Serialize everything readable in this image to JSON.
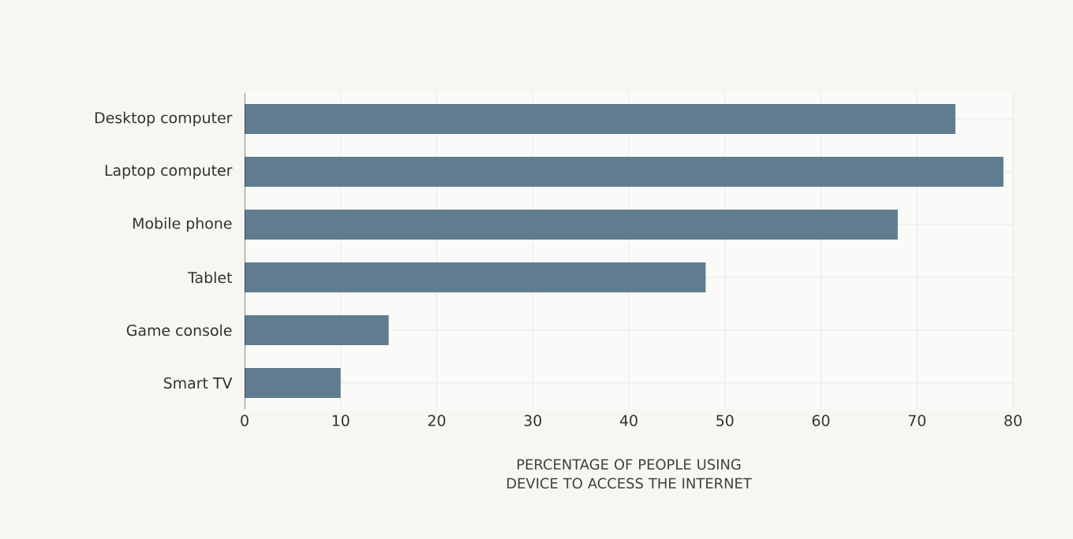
{
  "chart_data": {
    "type": "bar",
    "orientation": "horizontal",
    "categories": [
      "Desktop computer",
      "Laptop computer",
      "Mobile phone",
      "Tablet",
      "Game console",
      "Smart TV"
    ],
    "values": [
      74,
      79,
      68,
      48,
      15,
      10
    ],
    "color": "#5f7d8e",
    "xlabel": "PERCENTAGE OF PEOPLE USING DEVICE TO ACCESS THE INTERNET",
    "xlim": [
      0,
      80
    ],
    "xticks": [
      0,
      10,
      20,
      30,
      40,
      50,
      60,
      70,
      80
    ],
    "grid": true
  }
}
